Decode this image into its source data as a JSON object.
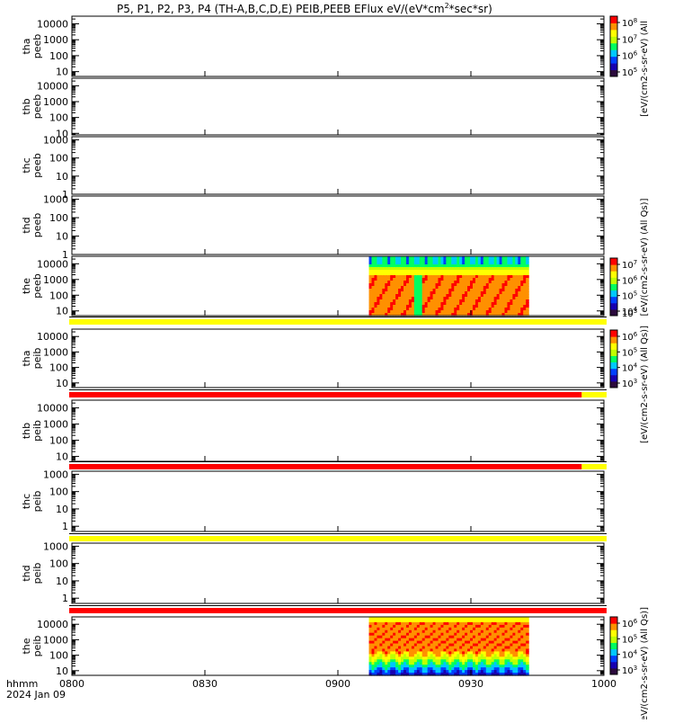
{
  "chart_data": {
    "type": "heatmap",
    "title": "P5, P1, P2, P3, P4 (TH-A,B,C,D,E) PEIB,PEEB EFlux eV/(eV*cm",
    "title_sup": "2",
    "title_tail": "*sec*sr)",
    "x_ticks": [
      "0800",
      "0830",
      "0900",
      "0930",
      "1000"
    ],
    "x_range": [
      "0800",
      "1000"
    ],
    "footer_time_label": "hhmm",
    "footer_date": "2024 Jan 09",
    "panels": [
      {
        "line1": "tha",
        "line2": "peeb",
        "y_ticks": [
          "10000",
          "1000",
          "100",
          "10"
        ],
        "ylim": [
          5,
          30000
        ],
        "has_data": false,
        "quality_bar": null
      },
      {
        "line1": "thb",
        "line2": "peeb",
        "y_ticks": [
          "10000",
          "1000",
          "100",
          "10"
        ],
        "ylim": [
          8,
          30000
        ],
        "has_data": false,
        "quality_bar": null
      },
      {
        "line1": "thc",
        "line2": "peeb",
        "y_ticks": [
          "1000",
          "100",
          "10",
          "1"
        ],
        "ylim": [
          1,
          1500
        ],
        "has_data": false,
        "quality_bar": null
      },
      {
        "line1": "thd",
        "line2": "peeb",
        "y_ticks": [
          "1000",
          "100",
          "10",
          "1"
        ],
        "ylim": [
          1,
          1500
        ],
        "has_data": false,
        "quality_bar": null
      },
      {
        "line1": "the",
        "line2": "peeb",
        "y_ticks": [
          "10000",
          "1000",
          "100",
          "10"
        ],
        "ylim": [
          5,
          30000
        ],
        "has_data": true,
        "data_start": "0907",
        "data_end": "0943",
        "quality_bar": [
          {
            "from": "0800",
            "to": "1000",
            "color": "#ffff00"
          }
        ]
      },
      {
        "line1": "tha",
        "line2": "peib",
        "y_ticks": [
          "10000",
          "1000",
          "100",
          "10"
        ],
        "ylim": [
          5,
          30000
        ],
        "has_data": false,
        "quality_bar": [
          {
            "from": "0800",
            "to": "0955",
            "color": "#ff0000"
          },
          {
            "from": "0955",
            "to": "1000",
            "color": "#ffff00"
          }
        ]
      },
      {
        "line1": "thb",
        "line2": "peib",
        "y_ticks": [
          "10000",
          "1000",
          "100",
          "10"
        ],
        "ylim": [
          5,
          30000
        ],
        "has_data": false,
        "quality_bar": [
          {
            "from": "0800",
            "to": "0955",
            "color": "#ff0000"
          },
          {
            "from": "0955",
            "to": "1000",
            "color": "#ffff00"
          }
        ]
      },
      {
        "line1": "thc",
        "line2": "peib",
        "y_ticks": [
          "1000",
          "100",
          "10",
          "1"
        ],
        "ylim": [
          0.5,
          1500
        ],
        "has_data": false,
        "quality_bar": [
          {
            "from": "0800",
            "to": "1000",
            "color": "#ffff00"
          }
        ]
      },
      {
        "line1": "thd",
        "line2": "peib",
        "y_ticks": [
          "1000",
          "100",
          "10",
          "1"
        ],
        "ylim": [
          0.5,
          1500
        ],
        "has_data": false,
        "quality_bar": [
          {
            "from": "0800",
            "to": "1000",
            "color": "#ff0000"
          }
        ]
      },
      {
        "line1": "the",
        "line2": "peib",
        "y_ticks": [
          "10000",
          "1000",
          "100",
          "10"
        ],
        "ylim": [
          5,
          30000
        ],
        "has_data": true,
        "data_start": "0907",
        "data_end": "0943",
        "quality_bar": null
      }
    ],
    "colorbars": [
      {
        "label": "[eV/(cm2-s-sr-eV) (All",
        "ticks": [
          "10",
          "10",
          "10",
          "10"
        ],
        "exps": [
          "8",
          "7",
          "6",
          "5"
        ]
      },
      {
        "label": "[eV/(cm2-s-sr-eV) (All Qs)]",
        "ticks": [
          "10",
          "10",
          "10",
          "10"
        ],
        "exps": [
          "7",
          "6",
          "5",
          "4"
        ],
        "extra": [
          "10",
          "3"
        ]
      },
      {
        "label": "[eV/(cm2-s-sr-eV) (All Qs)]",
        "ticks": [
          "10",
          "10",
          "10",
          "10"
        ],
        "exps": [
          "6",
          "5",
          "4",
          "3"
        ]
      },
      {
        "label": "[eV/(cm2-s-sr-eV) (All Qs)]",
        "ticks": [
          "10",
          "10",
          "10",
          "10"
        ],
        "exps": [
          "6",
          "5",
          "4",
          "3"
        ]
      }
    ],
    "colormap": [
      "#2b0a3d",
      "#1800b0",
      "#0040ff",
      "#00c8ff",
      "#00ff60",
      "#c0ff00",
      "#ffff00",
      "#ff9000",
      "#ff0000"
    ]
  }
}
